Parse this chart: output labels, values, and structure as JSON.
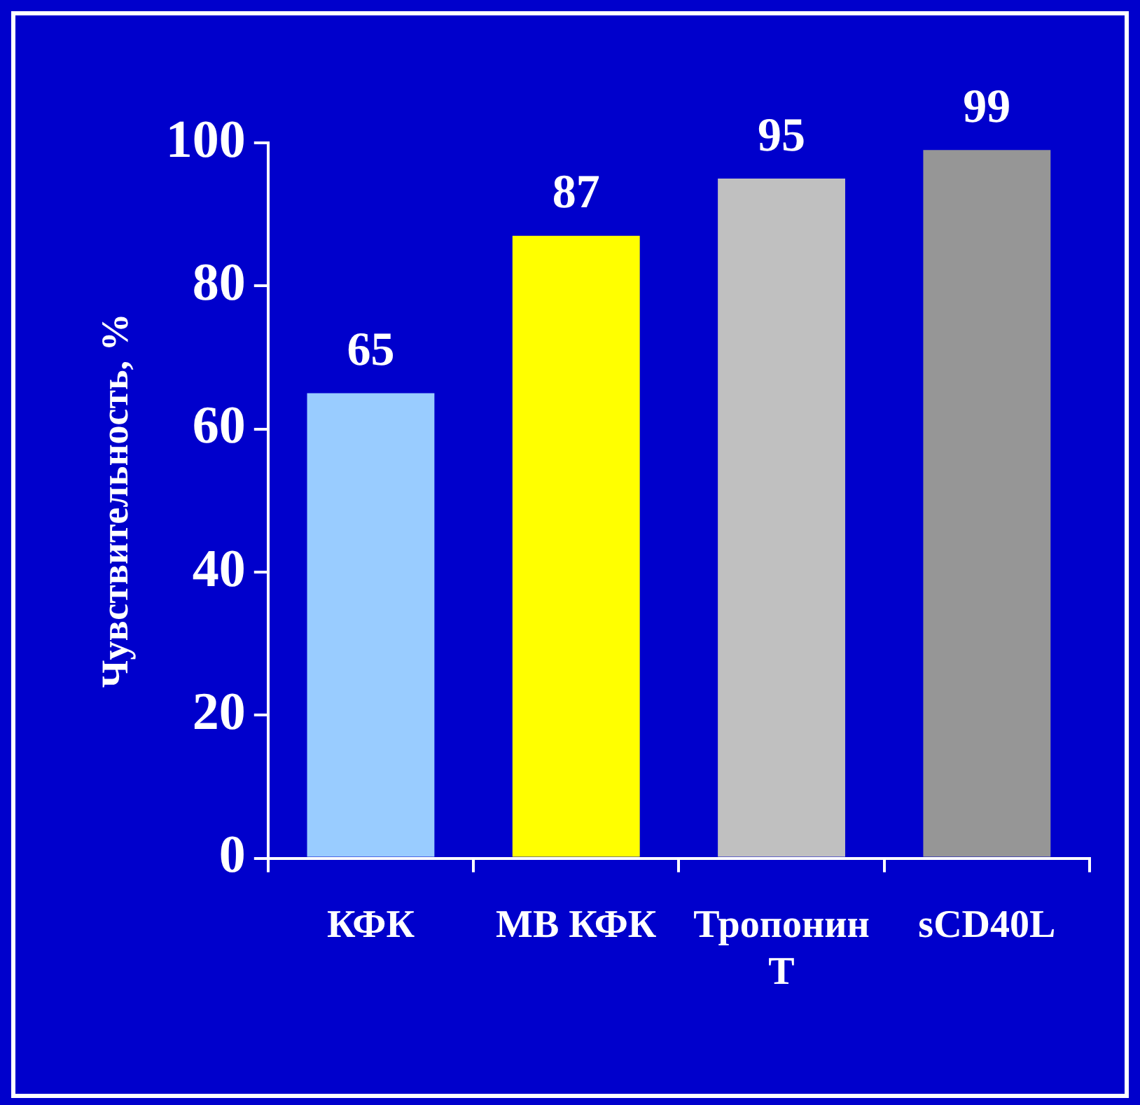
{
  "chart_data": {
    "type": "bar",
    "ylabel": "Чувствительность, %",
    "categories": [
      "КФК",
      "МВ КФК",
      "Тропонин T",
      "sCD40L"
    ],
    "values": [
      65,
      87,
      95,
      99
    ],
    "colors": [
      "#99ccff",
      "#ffff00",
      "#c0c0c0",
      "#969696"
    ],
    "ylim": [
      0,
      100
    ],
    "yticks": [
      0,
      20,
      40,
      60,
      80,
      100
    ],
    "grid": false,
    "legend": false,
    "data_labels": true
  }
}
